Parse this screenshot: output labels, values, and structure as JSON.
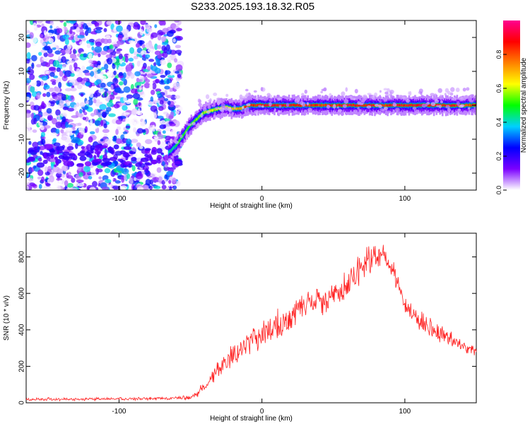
{
  "title": "S233.2025.193.18.32.R05",
  "chart_data": [
    {
      "type": "heatmap",
      "panel": "spectrogram",
      "xlabel": "Height of straight line (km)",
      "ylabel": "Frequency (Hz)",
      "xlim": [
        -165,
        150
      ],
      "ylim": [
        -25,
        25
      ],
      "xticks": [
        -100,
        0,
        100
      ],
      "yticks": [
        -20,
        -10,
        0,
        10,
        20
      ],
      "grid": false,
      "noise_region": {
        "x": [
          -165,
          -57
        ],
        "description": "scattered low-amplitude noise"
      },
      "ridge": {
        "x": [
          -65,
          -60,
          -55,
          -50,
          -45,
          -40,
          -38,
          -35,
          -30,
          -25,
          -20,
          -15,
          -12,
          -8,
          -5,
          0,
          10,
          20,
          40,
          60,
          80,
          100,
          120,
          150
        ],
        "y": [
          -14,
          -12,
          -9,
          -6,
          -4,
          -2,
          -2,
          -1.5,
          -1,
          -0.5,
          -1,
          -1,
          -0.5,
          0,
          0,
          0,
          0,
          0,
          0,
          0,
          0,
          0,
          0,
          0
        ],
        "peak_amplitude": [
          0.45,
          0.5,
          0.55,
          0.55,
          0.6,
          0.6,
          0.65,
          0.65,
          0.7,
          0.7,
          0.75,
          0.8,
          0.85,
          0.9,
          0.9,
          0.95,
          0.95,
          0.95,
          0.9,
          0.95,
          0.95,
          0.95,
          0.95,
          0.9
        ]
      },
      "colorbar": {
        "label": "Normalized spectral amplitude",
        "range": [
          0,
          1
        ],
        "ticks": [
          "0.0",
          "0.2",
          "0.4",
          "0.6",
          "0.8"
        ],
        "colors": [
          "#ffffff",
          "#7b00ff",
          "#0000ff",
          "#00d0ff",
          "#00ff00",
          "#ffff00",
          "#ff8000",
          "#ff0000",
          "#ff0090"
        ]
      }
    },
    {
      "type": "line",
      "panel": "snr",
      "xlabel": "Height of straight line (km)",
      "ylabel": "SNR (10 * v/v)",
      "xlim": [
        -165,
        150
      ],
      "ylim": [
        0,
        930
      ],
      "xticks": [
        -100,
        0,
        100
      ],
      "yticks": [
        0,
        200,
        400,
        600,
        800
      ],
      "grid": false,
      "series": [
        {
          "color": "#ff2020",
          "x": [
            -165,
            -140,
            -120,
            -100,
            -80,
            -60,
            -50,
            -45,
            -40,
            -35,
            -30,
            -20,
            -10,
            0,
            10,
            20,
            30,
            40,
            50,
            60,
            65,
            70,
            75,
            80,
            85,
            90,
            95,
            100,
            110,
            120,
            130,
            140,
            150
          ],
          "values": [
            20,
            20,
            20,
            22,
            22,
            25,
            30,
            50,
            100,
            150,
            190,
            260,
            320,
            380,
            430,
            480,
            530,
            570,
            600,
            660,
            700,
            760,
            790,
            810,
            790,
            750,
            650,
            540,
            460,
            400,
            360,
            310,
            280
          ],
          "noise": [
            10,
            10,
            10,
            10,
            10,
            10,
            15,
            25,
            40,
            50,
            60,
            70,
            80,
            90,
            100,
            100,
            100,
            100,
            100,
            110,
            110,
            110,
            110,
            110,
            100,
            90,
            80,
            70,
            70,
            60,
            50,
            40,
            30
          ]
        }
      ]
    }
  ]
}
